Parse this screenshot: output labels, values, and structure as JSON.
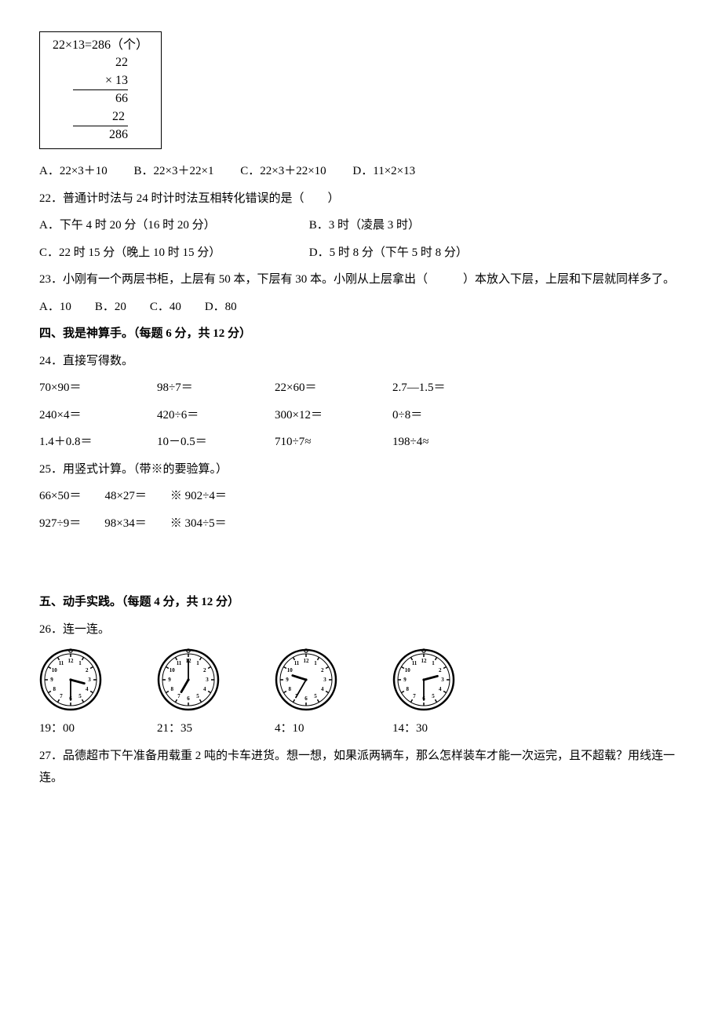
{
  "calcBox": {
    "top": "22×13=286（个）",
    "n1": "22",
    "n2": "× 13",
    "p1": "66",
    "p2": "22 ",
    "res": "286"
  },
  "q21": {
    "opts": {
      "A": "A．22×3＋10",
      "B": "B．22×3＋22×1",
      "C": "C．22×3＋22×10",
      "D": "D．11×2×13"
    }
  },
  "q22": {
    "stem": "22．普通计时法与 24 时计时法互相转化错误的是（　　）",
    "A": "A．下午 4 时 20 分（16 时 20 分）",
    "B": "B．3 时（凌晨 3 时）",
    "C": "C．22 时 15 分（晚上 10 时 15 分）",
    "D": "D．5 时 8 分（下午 5 时 8 分）"
  },
  "q23": {
    "stem": "23．小刚有一个两层书柜，上层有 50 本，下层有 30 本。小刚从上层拿出（　　　）本放入下层，上层和下层就同样多了。",
    "opts": "A．10　　B．20　　C．40　　D．80"
  },
  "sec4": {
    "head": "四、我是神算手。（每题 6 分，共 12 分）",
    "q24": "24．直接写得数。",
    "row1": {
      "a": "70×90＝",
      "b": "98÷7＝",
      "c": "22×60＝",
      "d": "2.7—1.5＝"
    },
    "row2": {
      "a": "240×4＝",
      "b": "420÷6＝",
      "c": "300×12＝",
      "d": "0÷8＝"
    },
    "row3": {
      "a": "1.4＋0.8＝",
      "b": "10－0.5＝",
      "c": "710÷7≈",
      "d": "198÷4≈"
    },
    "q25": "25．用竖式计算。（带※的要验算。）",
    "q25r1": "66×50＝　　48×27＝　　※ 902÷4＝",
    "q25r2": "927÷9＝　　98×34＝　　※ 304÷5＝"
  },
  "sec5": {
    "head": "五、动手实践。（每题 4 分，共 12 分）",
    "q26": "26．连一连。",
    "clocks": [
      {
        "hour": 3,
        "minute": 30,
        "label": "19：00"
      },
      {
        "hour": 7,
        "minute": 0,
        "label": "21：35"
      },
      {
        "hour": 9,
        "minute": 35,
        "label": "4：10"
      },
      {
        "hour": 2,
        "minute": 30,
        "label": "14：30"
      }
    ],
    "q27": "27．品德超市下午准备用载重 2 吨的卡车进货。想一想，如果派两辆车，那么怎样装车才能一次运完，且不超载？用线连一连。"
  },
  "clockStyle": {
    "faceStroke": "#000",
    "faceFill": "#fff",
    "tickStroke": "#000",
    "numFont": 7,
    "hourHandLen": 18,
    "minHandLen": 26,
    "handStroke": "#000",
    "hourWidth": 2.8,
    "minWidth": 1.8,
    "dotR": 1.6,
    "outerR": 38,
    "innerR": 33,
    "tickOuter": 33,
    "tickInner": 29
  }
}
